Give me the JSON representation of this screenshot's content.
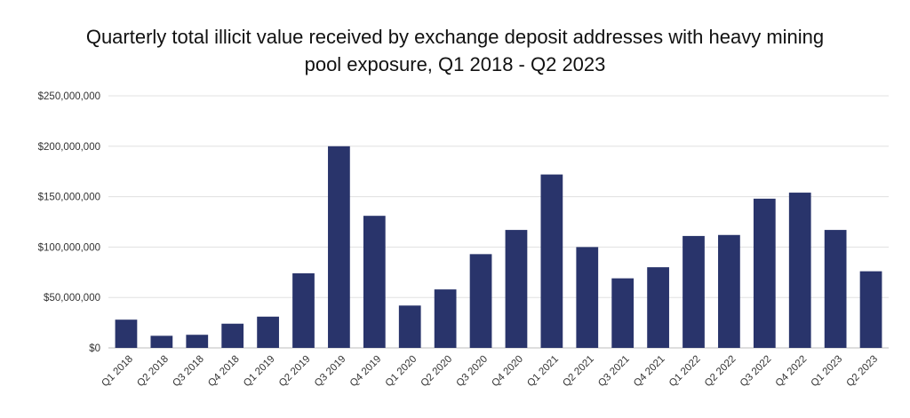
{
  "chart_data": {
    "type": "bar",
    "title_line1": "Quarterly total illicit value received by exchange deposit addresses with heavy mining",
    "title_line2": "pool exposure, Q1 2018 - Q2 2023",
    "xlabel": "",
    "ylabel": "",
    "ylim": [
      0,
      250000000
    ],
    "yticks": [
      0,
      50000000,
      100000000,
      150000000,
      200000000,
      250000000
    ],
    "ytick_labels": [
      "$0",
      "$50,000,000",
      "$100,000,000",
      "$150,000,000",
      "$200,000,000",
      "$250,000,000"
    ],
    "categories": [
      "Q1 2018",
      "Q2 2018",
      "Q3 2018",
      "Q4 2018",
      "Q1 2019",
      "Q2 2019",
      "Q3 2019",
      "Q4 2019",
      "Q1 2020",
      "Q2 2020",
      "Q3 2020",
      "Q4 2020",
      "Q1 2021",
      "Q2 2021",
      "Q3 2021",
      "Q4 2021",
      "Q1 2022",
      "Q2 2022",
      "Q3 2022",
      "Q4 2022",
      "Q1 2023",
      "Q2 2023"
    ],
    "values": [
      28000000,
      12000000,
      13000000,
      24000000,
      31000000,
      74000000,
      200000000,
      131000000,
      42000000,
      58000000,
      93000000,
      117000000,
      172000000,
      100000000,
      69000000,
      80000000,
      111000000,
      112000000,
      148000000,
      154000000,
      117000000,
      76000000
    ],
    "bar_color": "#29346b",
    "grid": true,
    "legend": "none"
  }
}
